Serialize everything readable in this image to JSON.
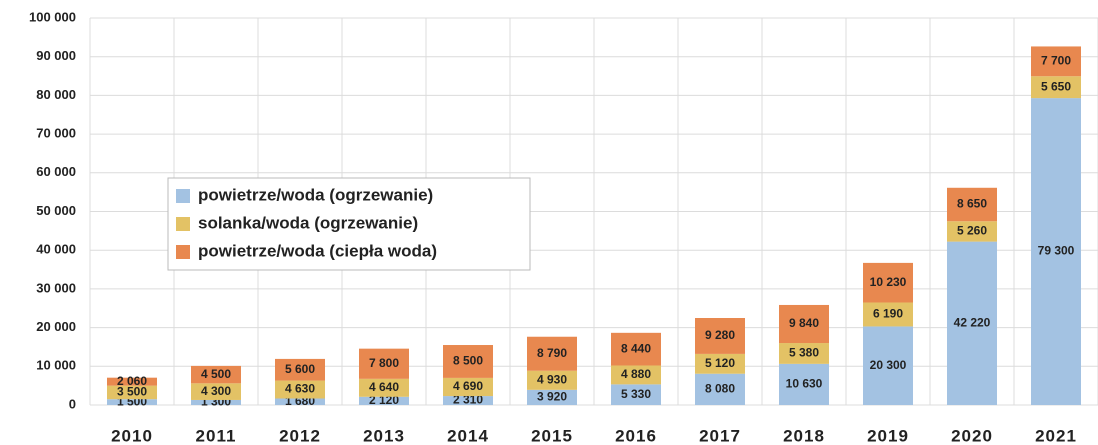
{
  "chart_data": {
    "type": "stacked_bar",
    "categories": [
      "2010",
      "2011",
      "2012",
      "2013",
      "2014",
      "2015",
      "2016",
      "2017",
      "2018",
      "2019",
      "2020",
      "2021"
    ],
    "series": [
      {
        "name": "powietrze/woda (ogrzewanie)",
        "color": "#a3c2e2",
        "values": [
          1500,
          1300,
          1680,
          2120,
          2310,
          3920,
          5330,
          8080,
          10630,
          20300,
          42220,
          79300
        ],
        "value_labels": [
          "1 500",
          "1 300",
          "1 680",
          "2 120",
          "2 310",
          "3 920",
          "5 330",
          "8 080",
          "10 630",
          "20 300",
          "42 220",
          "79 300"
        ]
      },
      {
        "name": "solanka/woda (ogrzewanie)",
        "color": "#e3c265",
        "values": [
          3500,
          4300,
          4630,
          4640,
          4690,
          4930,
          4880,
          5120,
          5380,
          6190,
          5260,
          5650
        ],
        "value_labels": [
          "3 500",
          "4 300",
          "4 630",
          "4 640",
          "4 690",
          "4 930",
          "4 880",
          "5 120",
          "5 380",
          "6 190",
          "5 260",
          "5 650"
        ]
      },
      {
        "name": "powietrze/woda (ciepła woda)",
        "color": "#e8884f",
        "values": [
          2060,
          4500,
          5600,
          7800,
          8500,
          8790,
          8440,
          9280,
          9840,
          10230,
          8650,
          7700
        ],
        "value_labels": [
          "2 060",
          "4 500",
          "5 600",
          "7 800",
          "8 500",
          "8 790",
          "8 440",
          "9 280",
          "9 840",
          "10 230",
          "8 650",
          "7 700"
        ]
      }
    ],
    "ylim": [
      0,
      100000
    ],
    "yticks": [
      0,
      {
        "value": 10000,
        "label": "10 000"
      },
      {
        "value": 20000,
        "label": "20 000"
      },
      {
        "value": 30000,
        "label": "30 000"
      },
      {
        "value": 40000,
        "label": "40 000"
      },
      {
        "value": 50000,
        "label": "50 000"
      },
      {
        "value": 60000,
        "label": "60 000"
      },
      {
        "value": 70000,
        "label": "70 000"
      },
      {
        "value": 80000,
        "label": "80 000"
      },
      {
        "value": 90000,
        "label": "90 000"
      },
      {
        "value": 100000,
        "label": "100 000"
      }
    ],
    "grid": true
  }
}
